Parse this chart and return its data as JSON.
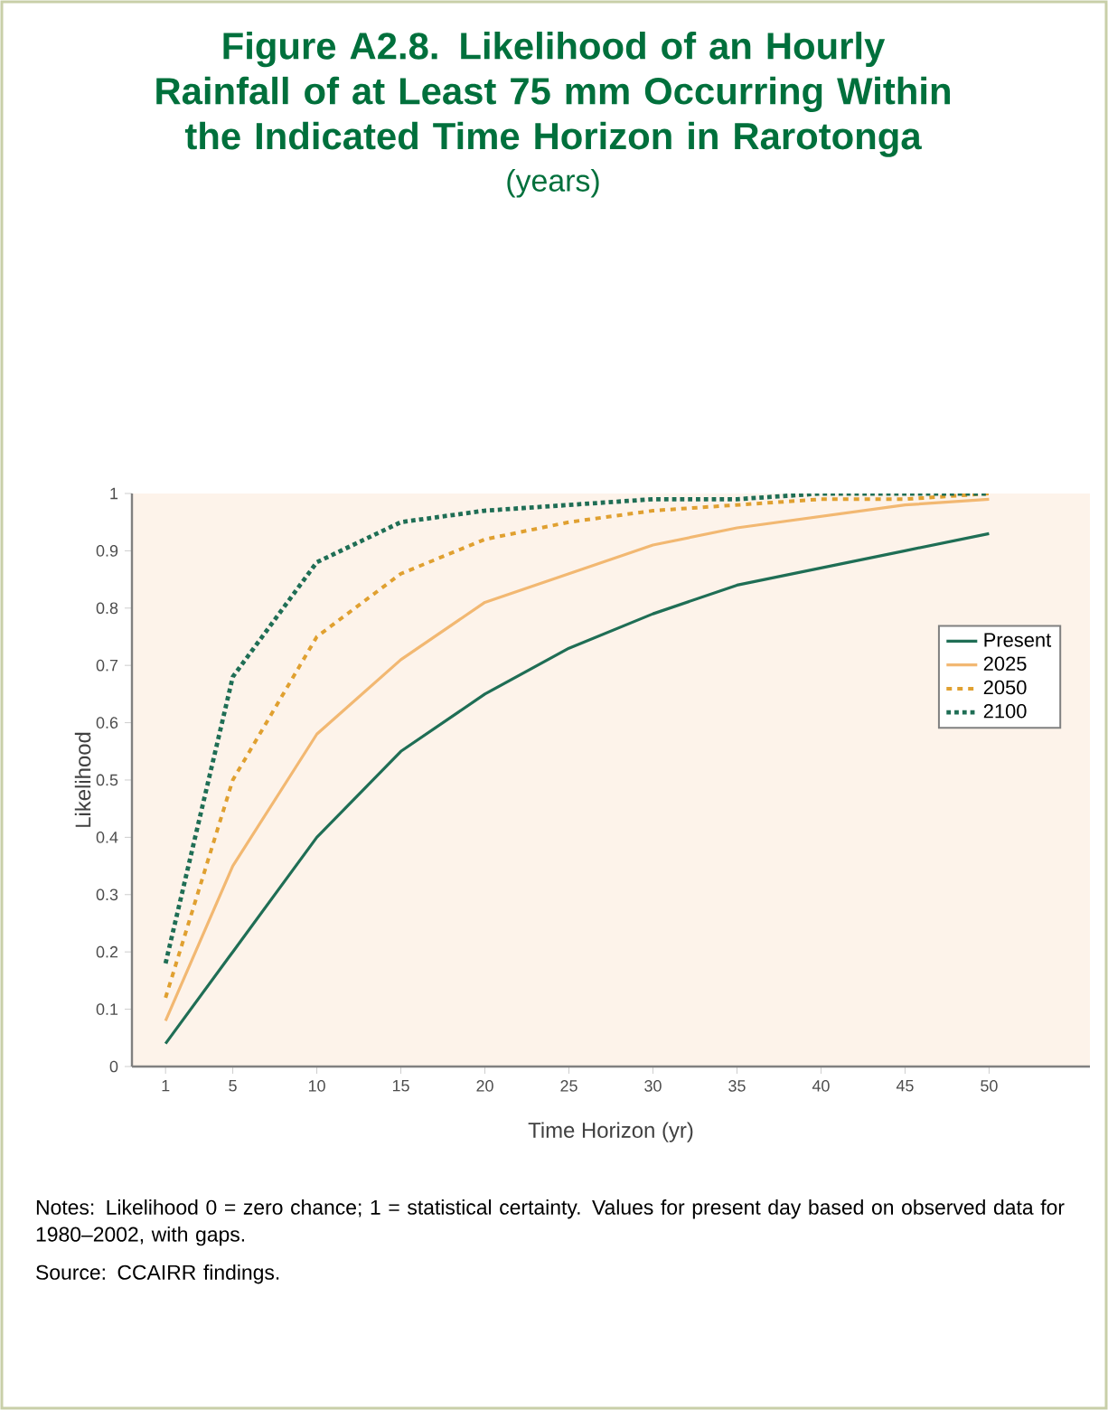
{
  "chart_data": {
    "type": "line",
    "title": "Figure A2.8. Likelihood of an Hourly Rainfall of at Least 75 mm Occurring Within the Indicated Time Horizon in Rarotonga",
    "subtitle": "(years)",
    "xlabel": "Time Horizon (yr)",
    "ylabel": "Likelihood",
    "x": [
      1,
      5,
      10,
      15,
      20,
      25,
      30,
      35,
      40,
      45,
      50
    ],
    "series": [
      {
        "name": "Present",
        "color": "#1f6e55",
        "line_style": "solid",
        "values": [
          0.04,
          0.2,
          0.4,
          0.55,
          0.65,
          0.73,
          0.79,
          0.84,
          0.87,
          0.9,
          0.93
        ]
      },
      {
        "name": "2025",
        "color": "#f2b872",
        "line_style": "solid",
        "values": [
          0.08,
          0.35,
          0.58,
          0.71,
          0.81,
          0.86,
          0.91,
          0.94,
          0.96,
          0.98,
          0.99
        ]
      },
      {
        "name": "2050",
        "color": "#e0a030",
        "line_style": "dashed",
        "values": [
          0.12,
          0.5,
          0.75,
          0.86,
          0.92,
          0.95,
          0.97,
          0.98,
          0.99,
          0.99,
          1.0
        ]
      },
      {
        "name": "2100",
        "color": "#1f6e55",
        "line_style": "dotted",
        "values": [
          0.18,
          0.68,
          0.88,
          0.95,
          0.97,
          0.98,
          0.99,
          0.99,
          1.0,
          1.0,
          1.0
        ]
      }
    ],
    "xlim": [
      -1,
      56
    ],
    "ylim": [
      0,
      1
    ],
    "xticks": [
      1,
      5,
      10,
      15,
      20,
      25,
      30,
      35,
      40,
      45,
      50
    ],
    "yticks": [
      0,
      0.1,
      0.2,
      0.3,
      0.4,
      0.5,
      0.6,
      0.7,
      0.8,
      0.9,
      1
    ],
    "grid": false,
    "legend": "right",
    "marker": "none",
    "annotations": [
      "Notes: Likelihood 0 = zero chance; 1 = statistical certainty. Values for present day based on observed data for 1980–2002, with gaps.",
      "Source: CCAIRR findings."
    ]
  }
}
